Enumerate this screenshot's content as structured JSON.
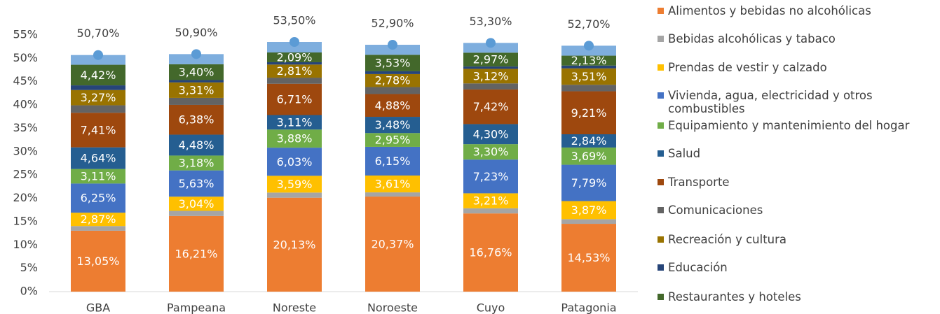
{
  "chart_data": {
    "type": "stacked_bar",
    "categories": [
      "GBA",
      "Pampeana",
      "Noreste",
      "Noroeste",
      "Cuyo",
      "Patagonia"
    ],
    "ylim": [
      0,
      55
    ],
    "yticks": [
      {
        "value": 0,
        "label": "0%"
      },
      {
        "value": 5,
        "label": "5%"
      },
      {
        "value": 10,
        "label": "10%"
      },
      {
        "value": 15,
        "label": "15%"
      },
      {
        "value": 20,
        "label": "20%"
      },
      {
        "value": 25,
        "label": "25%"
      },
      {
        "value": 30,
        "label": "30%"
      },
      {
        "value": 35,
        "label": "35%"
      },
      {
        "value": 40,
        "label": "40%"
      },
      {
        "value": 45,
        "label": "45%"
      },
      {
        "value": 50,
        "label": "50%"
      },
      {
        "value": 55,
        "label": "55%"
      }
    ],
    "series": [
      {
        "name": "Alimentos y bebidas no alcohólicas",
        "color": "#ED7D31",
        "values": [
          13.05,
          16.21,
          20.13,
          20.37,
          16.76,
          14.53
        ],
        "value_labels": [
          "13,05%",
          "16,21%",
          "20,13%",
          "20,37%",
          "16,76%",
          "14,53%"
        ]
      },
      {
        "name": "Bebidas alcohólicas y tabaco",
        "color": "#A5A5A5",
        "values": [
          1.0,
          1.1,
          1.1,
          0.9,
          1.1,
          1.0
        ],
        "value_labels": [
          null,
          null,
          null,
          null,
          null,
          null
        ]
      },
      {
        "name": "Prendas de vestir y calzado",
        "color": "#FFC000",
        "values": [
          2.87,
          3.04,
          3.59,
          3.61,
          3.21,
          3.87
        ],
        "value_labels": [
          "2,87%",
          "3,04%",
          "3,59%",
          "3,61%",
          "3,21%",
          "3,87%"
        ]
      },
      {
        "name": "Vivienda, agua, electricidad y otros combustibles",
        "color": "#4472C4",
        "values": [
          6.25,
          5.63,
          6.03,
          6.15,
          7.23,
          7.79
        ],
        "value_labels": [
          "6,25%",
          "5,63%",
          "6,03%",
          "6,15%",
          "7,23%",
          "7,79%"
        ]
      },
      {
        "name": "Equipamiento y mantenimiento del hogar",
        "color": "#70AD47",
        "values": [
          3.11,
          3.18,
          3.88,
          2.95,
          3.3,
          3.69
        ],
        "value_labels": [
          "3,11%",
          "3,18%",
          "3,88%",
          "2,95%",
          "3,30%",
          "3,69%"
        ]
      },
      {
        "name": "Salud",
        "color": "#255E91",
        "values": [
          4.64,
          4.48,
          3.11,
          3.48,
          4.3,
          2.84
        ],
        "value_labels": [
          "4,64%",
          "4,48%",
          "3,11%",
          "3,48%",
          "4,30%",
          "2,84%"
        ]
      },
      {
        "name": "Transporte",
        "color": "#9E480E",
        "values": [
          7.41,
          6.38,
          6.71,
          4.88,
          7.42,
          9.21
        ],
        "value_labels": [
          "7,41%",
          "6,38%",
          "6,71%",
          "4,88%",
          "7,42%",
          "9,21%"
        ]
      },
      {
        "name": "Comunicaciones",
        "color": "#636363",
        "values": [
          1.6,
          1.5,
          1.3,
          1.5,
          1.3,
          1.4
        ],
        "value_labels": [
          null,
          null,
          null,
          null,
          null,
          null
        ]
      },
      {
        "name": "Recreación y cultura",
        "color": "#997300",
        "values": [
          3.27,
          3.31,
          2.81,
          2.78,
          3.12,
          3.51
        ],
        "value_labels": [
          "3,27%",
          "3,31%",
          "2,81%",
          "2,78%",
          "3,12%",
          "3,51%"
        ]
      },
      {
        "name": "Educación",
        "color": "#264478",
        "values": [
          1.0,
          0.5,
          0.5,
          0.6,
          0.5,
          0.6
        ],
        "value_labels": [
          null,
          null,
          null,
          null,
          null,
          null
        ]
      },
      {
        "name": "Restaurantes y hoteles",
        "color": "#43682B",
        "values": [
          4.42,
          3.4,
          2.09,
          3.53,
          2.97,
          2.13
        ],
        "value_labels": [
          "4,42%",
          "3,40%",
          "2,09%",
          "3,53%",
          "2,97%",
          "2,13%"
        ]
      },
      {
        "color": "#7EAEDE",
        "values": [
          2.08,
          2.17,
          2.25,
          2.15,
          2.09,
          2.13
        ]
      }
    ],
    "totals": {
      "color": "#5B9BD5",
      "values": [
        50.7,
        50.9,
        53.5,
        52.9,
        53.3,
        52.7
      ],
      "value_labels": [
        "50,70%",
        "50,90%",
        "53,50%",
        "52,90%",
        "53,30%",
        "52,70%"
      ]
    }
  }
}
